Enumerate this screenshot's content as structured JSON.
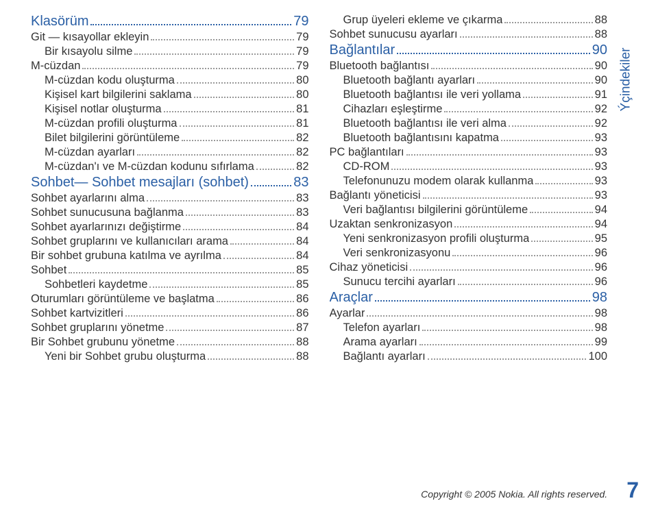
{
  "sidebar_label": "Ýçindekiler",
  "copyright": "Copyright © 2005 Nokia. All rights reserved.",
  "page_number": "7",
  "col1": [
    {
      "type": "section",
      "indent": 0,
      "label": "Klasörüm",
      "page": "79"
    },
    {
      "type": "item",
      "indent": 0,
      "label": "Git — kısayollar ekleyin",
      "page": "79"
    },
    {
      "type": "item",
      "indent": 1,
      "label": "Bir kısayolu silme",
      "page": "79"
    },
    {
      "type": "item",
      "indent": 0,
      "label": "M-cüzdan",
      "page": "79"
    },
    {
      "type": "item",
      "indent": 1,
      "label": "M-cüzdan kodu oluşturma",
      "page": "80"
    },
    {
      "type": "item",
      "indent": 1,
      "label": "Kişisel kart bilgilerini saklama",
      "page": "80"
    },
    {
      "type": "item",
      "indent": 1,
      "label": "Kişisel notlar oluşturma",
      "page": "81"
    },
    {
      "type": "item",
      "indent": 1,
      "label": "M-cüzdan profili oluşturma",
      "page": "81"
    },
    {
      "type": "item",
      "indent": 1,
      "label": "Bilet bilgilerini görüntüleme",
      "page": "82"
    },
    {
      "type": "item",
      "indent": 1,
      "label": "M-cüzdan ayarları",
      "page": "82"
    },
    {
      "type": "item",
      "indent": 1,
      "label": "M-cüzdan'ı ve M-cüzdan kodunu sıfırlama",
      "page": "82"
    },
    {
      "type": "section",
      "indent": 0,
      "label": "Sohbet— Sohbet mesajları (sohbet)",
      "page": "83"
    },
    {
      "type": "item",
      "indent": 0,
      "label": "Sohbet ayarlarını alma",
      "page": "83"
    },
    {
      "type": "item",
      "indent": 0,
      "label": "Sohbet sunucusuna bağlanma",
      "page": "83"
    },
    {
      "type": "item",
      "indent": 0,
      "label": "Sohbet ayarlarınızı değiştirme",
      "page": "84"
    },
    {
      "type": "item",
      "indent": 0,
      "label": "Sohbet gruplarını ve kullanıcıları arama",
      "page": "84"
    },
    {
      "type": "item",
      "indent": 0,
      "label": "Bir sohbet grubuna katılma ve ayrılma",
      "page": "84"
    },
    {
      "type": "item",
      "indent": 0,
      "label": "Sohbet",
      "page": "85"
    },
    {
      "type": "item",
      "indent": 1,
      "label": "Sohbetleri kaydetme",
      "page": "85"
    },
    {
      "type": "item",
      "indent": 0,
      "label": "Oturumları görüntüleme ve başlatma",
      "page": "86"
    },
    {
      "type": "item",
      "indent": 0,
      "label": "Sohbet kartvizitleri",
      "page": "86"
    },
    {
      "type": "item",
      "indent": 0,
      "label": "Sohbet gruplarını yönetme",
      "page": "87"
    },
    {
      "type": "item",
      "indent": 0,
      "label": "Bir Sohbet grubunu yönetme",
      "page": "88"
    },
    {
      "type": "item",
      "indent": 1,
      "label": "Yeni bir Sohbet grubu oluşturma",
      "page": "88"
    }
  ],
  "col2": [
    {
      "type": "item",
      "indent": 1,
      "label": "Grup üyeleri ekleme ve çıkarma",
      "page": "88"
    },
    {
      "type": "item",
      "indent": 0,
      "label": "Sohbet sunucusu ayarları",
      "page": "88"
    },
    {
      "type": "section",
      "indent": 0,
      "label": "Bağlantılar",
      "page": "90"
    },
    {
      "type": "item",
      "indent": 0,
      "label": "Bluetooth bağlantısı",
      "page": "90"
    },
    {
      "type": "item",
      "indent": 1,
      "label": "Bluetooth bağlantı ayarları",
      "page": "90"
    },
    {
      "type": "item",
      "indent": 1,
      "label": "Bluetooth bağlantısı ile veri yollama",
      "page": "91"
    },
    {
      "type": "item",
      "indent": 1,
      "label": "Cihazları eşleştirme",
      "page": "92"
    },
    {
      "type": "item",
      "indent": 1,
      "label": "Bluetooth bağlantısı ile veri alma",
      "page": "92"
    },
    {
      "type": "item",
      "indent": 1,
      "label": "Bluetooth bağlantısını kapatma",
      "page": "93"
    },
    {
      "type": "item",
      "indent": 0,
      "label": "PC bağlantıları",
      "page": "93"
    },
    {
      "type": "item",
      "indent": 1,
      "label": "CD-ROM",
      "page": "93"
    },
    {
      "type": "item",
      "indent": 1,
      "label": "Telefonunuzu modem olarak kullanma",
      "page": "93"
    },
    {
      "type": "item",
      "indent": 0,
      "label": "Bağlantı yöneticisi",
      "page": "93"
    },
    {
      "type": "item",
      "indent": 1,
      "label": "Veri bağlantısı bilgilerini görüntüleme",
      "page": "94"
    },
    {
      "type": "item",
      "indent": 0,
      "label": "Uzaktan senkronizasyon",
      "page": "94"
    },
    {
      "type": "item",
      "indent": 1,
      "label": "Yeni senkronizasyon profili oluşturma",
      "page": "95"
    },
    {
      "type": "item",
      "indent": 1,
      "label": "Veri senkronizasyonu",
      "page": "96"
    },
    {
      "type": "item",
      "indent": 0,
      "label": "Cihaz yöneticisi",
      "page": "96"
    },
    {
      "type": "item",
      "indent": 1,
      "label": "Sunucu tercihi ayarları",
      "page": "96"
    },
    {
      "type": "section",
      "indent": 0,
      "label": "Araçlar",
      "page": "98"
    },
    {
      "type": "item",
      "indent": 0,
      "label": "Ayarlar",
      "page": "98"
    },
    {
      "type": "item",
      "indent": 1,
      "label": "Telefon ayarları",
      "page": "98"
    },
    {
      "type": "item",
      "indent": 1,
      "label": "Arama ayarları",
      "page": "99"
    },
    {
      "type": "item",
      "indent": 1,
      "label": "Bağlantı ayarları",
      "page": "100"
    }
  ]
}
